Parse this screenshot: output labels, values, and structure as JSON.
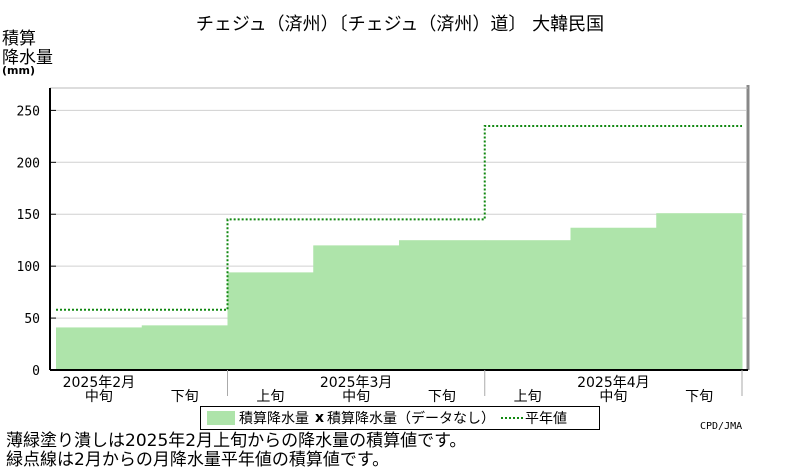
{
  "title": "チェジュ（済州）〔チェジュ（済州）道〕 大韓民国",
  "y_label_line1": "積算",
  "y_label_line2": "降水量",
  "y_unit": "(mm)",
  "legend": {
    "bar_label": "積算降水量",
    "marker_x": "x",
    "missing_label": "積算降水量（データなし）",
    "normal_label": "平年値"
  },
  "credit": "CPD/JMA",
  "notes": [
    "薄緑塗り潰しは2025年2月上旬からの降水量の積算値です。",
    "緑点線は2月からの月降水量平年値の積算値です。"
  ],
  "colors": {
    "bar_fill": "#aee4aa",
    "normal_line": "#118811",
    "grid": "#d0d0d0",
    "frame": "#888888"
  },
  "chart_data": {
    "type": "area",
    "ylim": [
      0,
      260
    ],
    "yticks": [
      0,
      50,
      100,
      150,
      200,
      250
    ],
    "periods": [
      {
        "month_label": "2025年2月",
        "dekad": "中旬",
        "value": 41
      },
      {
        "month_label": "",
        "dekad": "下旬",
        "value": 43
      },
      {
        "month_label": "",
        "dekad": "上旬",
        "value": 94
      },
      {
        "month_label": "2025年3月",
        "dekad": "中旬",
        "value": 120
      },
      {
        "month_label": "",
        "dekad": "下旬",
        "value": 125
      },
      {
        "month_label": "",
        "dekad": "上旬",
        "value": 125
      },
      {
        "month_label": "2025年4月",
        "dekad": "中旬",
        "value": 137
      },
      {
        "month_label": "",
        "dekad": "下旬",
        "value": 151
      }
    ],
    "normal": [
      {
        "period_index": 0,
        "value": 58
      },
      {
        "period_index": 1,
        "value": 58
      },
      {
        "period_index": 2,
        "value": 145
      },
      {
        "period_index": 3,
        "value": 145
      },
      {
        "period_index": 4,
        "value": 145
      },
      {
        "period_index": 5,
        "value": 235
      },
      {
        "period_index": 6,
        "value": 235
      },
      {
        "period_index": 7,
        "value": 235
      }
    ]
  }
}
